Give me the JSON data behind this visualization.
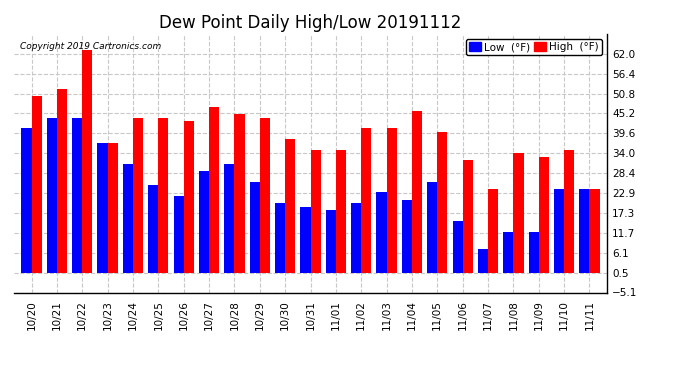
{
  "title": "Dew Point Daily High/Low 20191112",
  "copyright": "Copyright 2019 Cartronics.com",
  "legend_low": "Low  (°F)",
  "legend_high": "High  (°F)",
  "dates": [
    "10/20",
    "10/21",
    "10/22",
    "10/23",
    "10/24",
    "10/25",
    "10/26",
    "10/27",
    "10/28",
    "10/29",
    "10/30",
    "10/31",
    "11/01",
    "11/02",
    "11/03",
    "11/04",
    "11/05",
    "11/06",
    "11/07",
    "11/08",
    "11/09",
    "11/10",
    "11/11"
  ],
  "low_values": [
    41,
    44,
    44,
    37,
    31,
    25,
    22,
    29,
    31,
    26,
    20,
    19,
    18,
    20,
    23,
    21,
    26,
    15,
    7,
    12,
    12,
    24,
    24
  ],
  "high_values": [
    50,
    52,
    63,
    37,
    44,
    44,
    43,
    47,
    45,
    44,
    38,
    35,
    35,
    41,
    41,
    46,
    40,
    32,
    24,
    34,
    33,
    35,
    24
  ],
  "low_color": "#0000ff",
  "high_color": "#ff0000",
  "bg_color": "#ffffff",
  "grid_color": "#c8c8c8",
  "ylim_min": -5.1,
  "ylim_max": 67.6,
  "yticks": [
    -5.1,
    0.5,
    6.1,
    11.7,
    17.3,
    22.9,
    28.4,
    34.0,
    39.6,
    45.2,
    50.8,
    56.4,
    62.0
  ],
  "title_fontsize": 12,
  "tick_fontsize": 7.5,
  "legend_fontsize": 7.5,
  "bar_width": 0.4,
  "bar_bottom": 0.5
}
